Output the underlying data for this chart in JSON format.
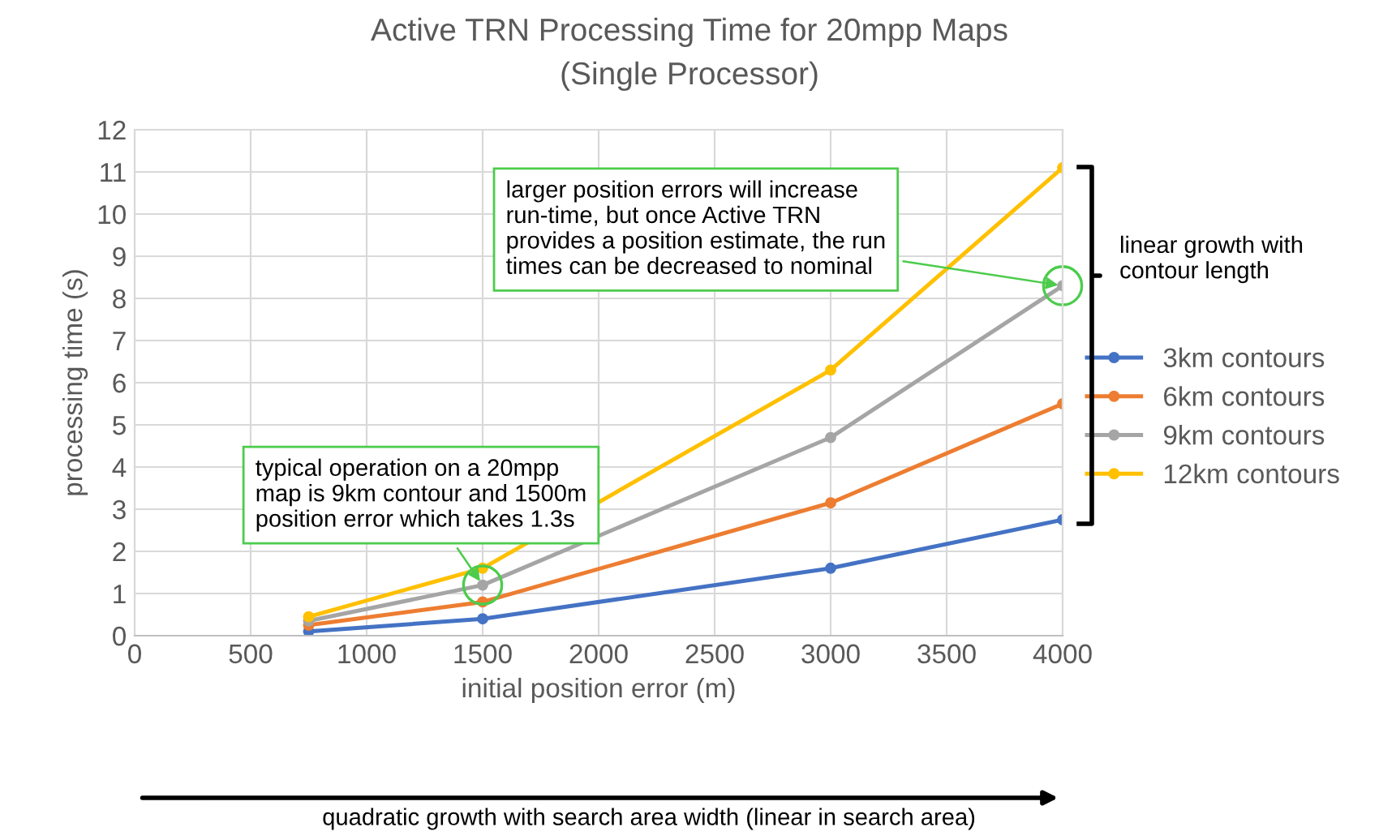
{
  "chart_data": {
    "type": "line",
    "title": "Active TRN Processing Time for 20mpp Maps",
    "subtitle": "(Single Processor)",
    "xlabel": "initial position error (m)",
    "ylabel": "processing time (s)",
    "x": [
      750,
      1500,
      3000,
      4000
    ],
    "series": [
      {
        "name": "3km contours",
        "color": "#4472c4",
        "values": [
          0.1,
          0.4,
          1.6,
          2.75
        ]
      },
      {
        "name": "6km contours",
        "color": "#ed7d31",
        "values": [
          0.25,
          0.8,
          3.15,
          5.5
        ]
      },
      {
        "name": "9km contours",
        "color": "#a5a5a5",
        "values": [
          0.35,
          1.2,
          4.7,
          8.3
        ]
      },
      {
        "name": "12km contours",
        "color": "#ffc000",
        "values": [
          0.45,
          1.6,
          6.3,
          11.1
        ]
      }
    ],
    "xlim": [
      0,
      4000
    ],
    "xticks": [
      0,
      500,
      1000,
      1500,
      2000,
      2500,
      3000,
      3500,
      4000
    ],
    "ylim": [
      0,
      12
    ],
    "yticks": [
      0,
      1,
      2,
      3,
      4,
      5,
      6,
      7,
      8,
      9,
      10,
      11,
      12
    ],
    "grid": true,
    "legend": "right",
    "marker": "circle",
    "line_style": "solid",
    "annotations": [
      {
        "text": "typical operation on a 20mpp\nmap is 9km contour and 1500m\nposition error which takes 1.3s",
        "x": 1500,
        "y": 1.2
      },
      {
        "text": "larger position errors will increase\nrun-time, but once Active TRN\nprovides a position estimate, the run\ntimes can be decreased to nominal",
        "x": 4000,
        "y": 8.3
      },
      "linear growth with\ncontour length",
      "quadratic growth with search area width (linear in search area)"
    ]
  }
}
